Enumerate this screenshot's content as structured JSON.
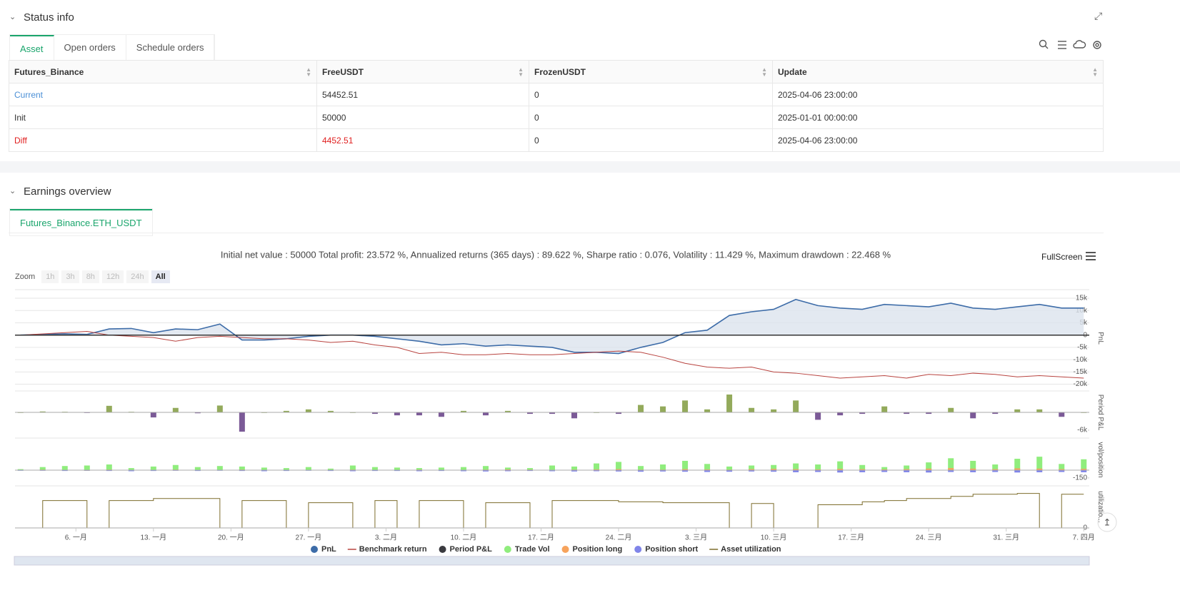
{
  "status": {
    "title": "Status info",
    "tabs": [
      "Asset",
      "Open orders",
      "Schedule orders"
    ],
    "table": {
      "columns": [
        "Futures_Binance",
        "FreeUSDT",
        "FrozenUSDT",
        "Update"
      ],
      "rows": [
        [
          "Current",
          "54452.51",
          "0",
          "2025-04-06 23:00:00"
        ],
        [
          "Init",
          "50000",
          "0",
          "2025-01-01 00:00:00"
        ],
        [
          "Diff",
          "4452.51",
          "0",
          "2025-04-06 23:00:00"
        ]
      ]
    }
  },
  "earnings": {
    "title": "Earnings overview",
    "tab": "Futures_Binance.ETH_USDT",
    "zoom_label": "Zoom",
    "zoom_buttons": [
      "1h",
      "3h",
      "8h",
      "12h",
      "24h",
      "All"
    ],
    "fullscreen": "FullScreen"
  },
  "chart_data": [
    {
      "type": "line",
      "title": "Initial net value : 50000 Total profit: 23.572 %, Annualized returns (365 days) : 89.622 %, Sharpe ratio : 0.076, Volatility : 11.429 %, Maximum drawdown : 22.468 %",
      "y_label": "PnL",
      "grid": true,
      "x": [
        0,
        2,
        4,
        6,
        8,
        10,
        12,
        14,
        16,
        18,
        20,
        22,
        24,
        26,
        28,
        30,
        32,
        34,
        36,
        38,
        40,
        42,
        44,
        46,
        48,
        50,
        52,
        54,
        56,
        58,
        60,
        62,
        64,
        66,
        68,
        70,
        72,
        74,
        76,
        78,
        80,
        82,
        84,
        86,
        88,
        90,
        92,
        94,
        96
      ],
      "xlim": [
        -0.5,
        96.5
      ],
      "ylim": [
        -21000,
        18500
      ],
      "yticks": [
        {
          "value": -20000,
          "label": "-20k"
        },
        {
          "value": -15000,
          "label": "-15k"
        },
        {
          "value": -10000,
          "label": "-10k"
        },
        {
          "value": -5000,
          "label": "-5k"
        },
        0,
        {
          "value": 5000,
          "label": "5k"
        },
        {
          "value": 10000,
          "label": "10k"
        },
        {
          "value": 15000,
          "label": "15k"
        }
      ],
      "series": [
        {
          "name": "PnL",
          "color": "#3d6ca8",
          "fill": "#dce3ee",
          "values": [
            0,
            300,
            500,
            300,
            2500,
            2700,
            1000,
            2500,
            2200,
            4500,
            -2000,
            -2000,
            -1500,
            -500,
            0,
            0,
            -500,
            -1500,
            -2500,
            -4000,
            -3500,
            -4500,
            -4000,
            -4500,
            -5000,
            -7000,
            -7000,
            -7500,
            -5000,
            -3000,
            1000,
            2000,
            8000,
            9500,
            10500,
            14500,
            12000,
            11000,
            10500,
            12500,
            12000,
            11500,
            13000,
            11000,
            10500,
            11500,
            12500,
            11000,
            11000
          ]
        },
        {
          "name": "Benchmark return",
          "color": "#b8433f",
          "legend_symbol": "line",
          "values": [
            0,
            500,
            1000,
            1500,
            0,
            -500,
            -1000,
            -2500,
            -1000,
            -500,
            -1000,
            -1500,
            -1500,
            -2000,
            -3000,
            -2500,
            -4000,
            -5000,
            -7500,
            -7000,
            -8000,
            -8000,
            -7500,
            -8000,
            -8000,
            -7500,
            -7000,
            -6500,
            -7000,
            -9000,
            -11500,
            -13000,
            -13500,
            -13000,
            -15000,
            -15500,
            -16500,
            -17500,
            -17000,
            -16500,
            -17500,
            -16000,
            -16500,
            -15500,
            -16000,
            -17000,
            -16500,
            -17000,
            -17500
          ]
        }
      ]
    },
    {
      "type": "bar",
      "y_label": "Period P&L",
      "x": [
        0,
        2,
        4,
        6,
        8,
        10,
        12,
        14,
        16,
        18,
        20,
        22,
        24,
        26,
        28,
        30,
        32,
        34,
        36,
        38,
        40,
        42,
        44,
        46,
        48,
        50,
        52,
        54,
        56,
        58,
        60,
        62,
        64,
        66,
        68,
        70,
        72,
        74,
        76,
        78,
        80,
        82,
        84,
        86,
        88,
        90,
        92,
        94,
        96
      ],
      "xlim": [
        -0.5,
        96.5
      ],
      "ylim": [
        -7200,
        7200
      ],
      "yticks": [
        {
          "value": -6000,
          "label": "-6k"
        }
      ],
      "series": [
        {
          "name": "Period P&L",
          "color": "#3a3a3f",
          "positive_color": "#93aa5b",
          "negative_color": "#7b5a97",
          "values": [
            0,
            300,
            200,
            -200,
            2200,
            200,
            -1700,
            1500,
            -300,
            2300,
            -6500,
            0,
            500,
            1000,
            500,
            0,
            -500,
            -1000,
            -1000,
            -1500,
            500,
            -1000,
            500,
            -500,
            -500,
            -2000,
            0,
            -500,
            2500,
            2000,
            4000,
            1000,
            6000,
            1500,
            1000,
            4000,
            -2500,
            -1000,
            -500,
            2000,
            -500,
            -500,
            1500,
            -2000,
            -500,
            1000,
            1000,
            -1500,
            0
          ]
        }
      ]
    },
    {
      "type": "bar",
      "y_label": "vol/position",
      "x": [
        0,
        2,
        4,
        6,
        8,
        10,
        12,
        14,
        16,
        18,
        20,
        22,
        24,
        26,
        28,
        30,
        32,
        34,
        36,
        38,
        40,
        42,
        44,
        46,
        48,
        50,
        52,
        54,
        56,
        58,
        60,
        62,
        64,
        66,
        68,
        70,
        72,
        74,
        76,
        78,
        80,
        82,
        84,
        86,
        88,
        90,
        92,
        94,
        96
      ],
      "xlim": [
        -0.5,
        96.5
      ],
      "ylim": [
        -220,
        620
      ],
      "yticks": [
        -150
      ],
      "series": [
        {
          "name": "Trade Vol",
          "color": "#90ed7d",
          "values": [
            20,
            60,
            80,
            90,
            110,
            40,
            70,
            100,
            60,
            80,
            70,
            50,
            40,
            60,
            30,
            90,
            60,
            50,
            40,
            50,
            60,
            80,
            50,
            40,
            90,
            70,
            130,
            160,
            80,
            110,
            180,
            120,
            70,
            90,
            100,
            130,
            110,
            170,
            100,
            60,
            90,
            150,
            230,
            180,
            110,
            220,
            260,
            120,
            210
          ]
        },
        {
          "name": "Position long",
          "color": "#f7a35c",
          "values": [
            5,
            10,
            5,
            0,
            10,
            5,
            5,
            10,
            5,
            5,
            10,
            5,
            5,
            5,
            0,
            10,
            5,
            5,
            10,
            5,
            5,
            10,
            15,
            10,
            5,
            10,
            15,
            20,
            10,
            10,
            20,
            15,
            10,
            20,
            25,
            20,
            15,
            25,
            20,
            15,
            20,
            30,
            40,
            30,
            20,
            35,
            30,
            20,
            25
          ]
        },
        {
          "name": "Position short",
          "color": "#8085e9",
          "values": [
            -5,
            -10,
            -15,
            -10,
            -15,
            -20,
            -15,
            -10,
            -15,
            -10,
            -15,
            -20,
            -15,
            -10,
            -15,
            -20,
            -15,
            -15,
            -20,
            -15,
            -20,
            -25,
            -20,
            -15,
            -20,
            -25,
            -20,
            -25,
            -30,
            -25,
            -30,
            -35,
            -30,
            -25,
            -30,
            -40,
            -35,
            -45,
            -40,
            -35,
            -40,
            -45,
            -35,
            -40,
            -35,
            -45,
            -40,
            -35,
            -40
          ]
        }
      ]
    },
    {
      "type": "line",
      "step": true,
      "y_label": "utilizatio...",
      "x": [
        0,
        2,
        4,
        6,
        8,
        10,
        12,
        14,
        16,
        18,
        20,
        22,
        24,
        26,
        28,
        30,
        32,
        34,
        36,
        38,
        40,
        42,
        44,
        46,
        48,
        50,
        52,
        54,
        56,
        58,
        60,
        62,
        64,
        66,
        68,
        70,
        72,
        74,
        76,
        78,
        80,
        82,
        84,
        86,
        88,
        90,
        92,
        94,
        96
      ],
      "xlim": [
        -0.5,
        96.5
      ],
      "ylim": [
        0,
        100
      ],
      "yticks": [
        0
      ],
      "xticks": [
        {
          "value": 5,
          "label": "6. 一月"
        },
        {
          "value": 12,
          "label": "13. 一月"
        },
        {
          "value": 19,
          "label": "20. 一月"
        },
        {
          "value": 26,
          "label": "27. 一月"
        },
        {
          "value": 33,
          "label": "3. 二月"
        },
        {
          "value": 40,
          "label": "10. 二月"
        },
        {
          "value": 47,
          "label": "17. 二月"
        },
        {
          "value": 54,
          "label": "24. 二月"
        },
        {
          "value": 61,
          "label": "3. 三月"
        },
        {
          "value": 68,
          "label": "10. 三月"
        },
        {
          "value": 75,
          "label": "17. 三月"
        },
        {
          "value": 82,
          "label": "24. 三月"
        },
        {
          "value": 89,
          "label": "31. 三月"
        },
        {
          "value": 96,
          "label": "7. 四月"
        }
      ],
      "series": [
        {
          "name": "Asset utilization",
          "color": "#7d6d2c",
          "legend_symbol": "line",
          "values": [
            0,
            65,
            65,
            0,
            65,
            65,
            70,
            70,
            70,
            0,
            65,
            65,
            0,
            60,
            60,
            0,
            65,
            0,
            65,
            65,
            0,
            60,
            60,
            0,
            65,
            65,
            65,
            62,
            62,
            60,
            60,
            60,
            0,
            58,
            0,
            0,
            55,
            55,
            62,
            65,
            70,
            70,
            75,
            80,
            80,
            82,
            0,
            80,
            80
          ]
        }
      ]
    }
  ]
}
